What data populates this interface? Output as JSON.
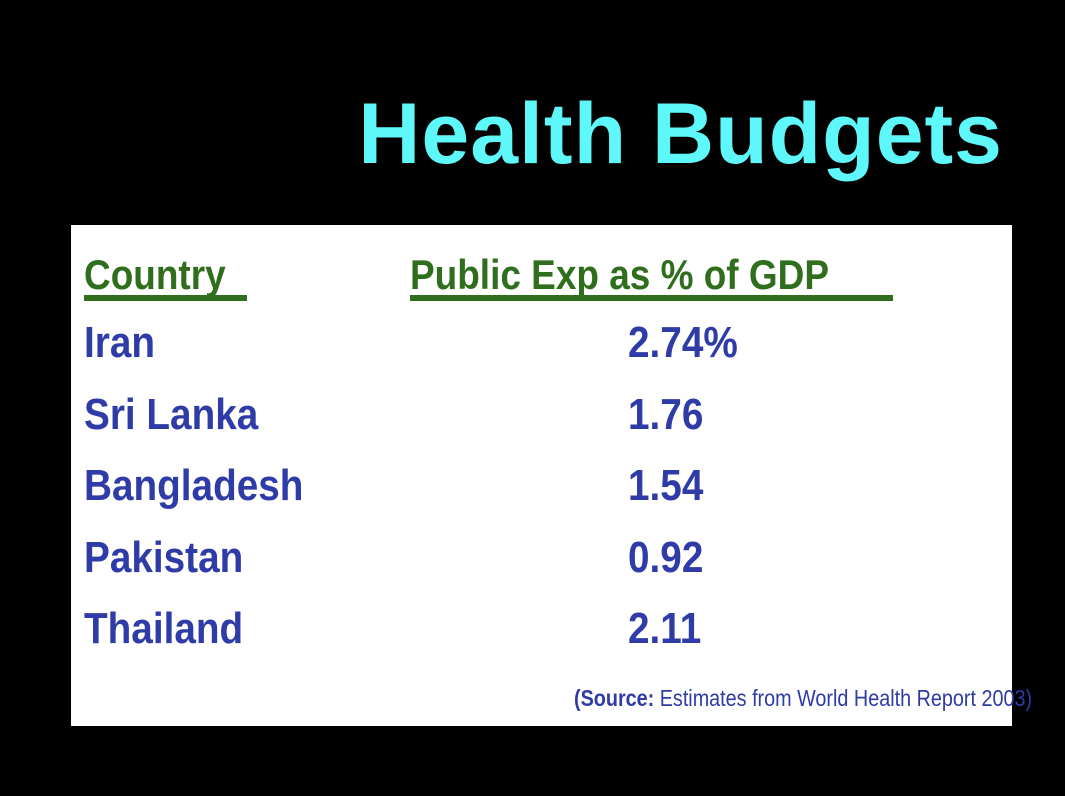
{
  "slide": {
    "title": "Health Budgets"
  },
  "table": {
    "headers": {
      "country": "Country",
      "expenditure": "Public Exp as % of GDP"
    },
    "rows": [
      {
        "country": "Iran",
        "value": "2.74%"
      },
      {
        "country": "Sri Lanka",
        "value": "1.76"
      },
      {
        "country": "Bangladesh",
        "value": "1.54"
      },
      {
        "country": "Pakistan",
        "value": "0.92"
      },
      {
        "country": "Thailand",
        "value": "2.11"
      }
    ],
    "source": {
      "label": "(Source:",
      "text": " Estimates from World Health Report 2003)"
    }
  },
  "colors": {
    "background": "#000000",
    "title": "#5ff8fa",
    "header": "#2f6e1c",
    "body_text": "#2f3ba6",
    "panel": "#ffffff"
  }
}
